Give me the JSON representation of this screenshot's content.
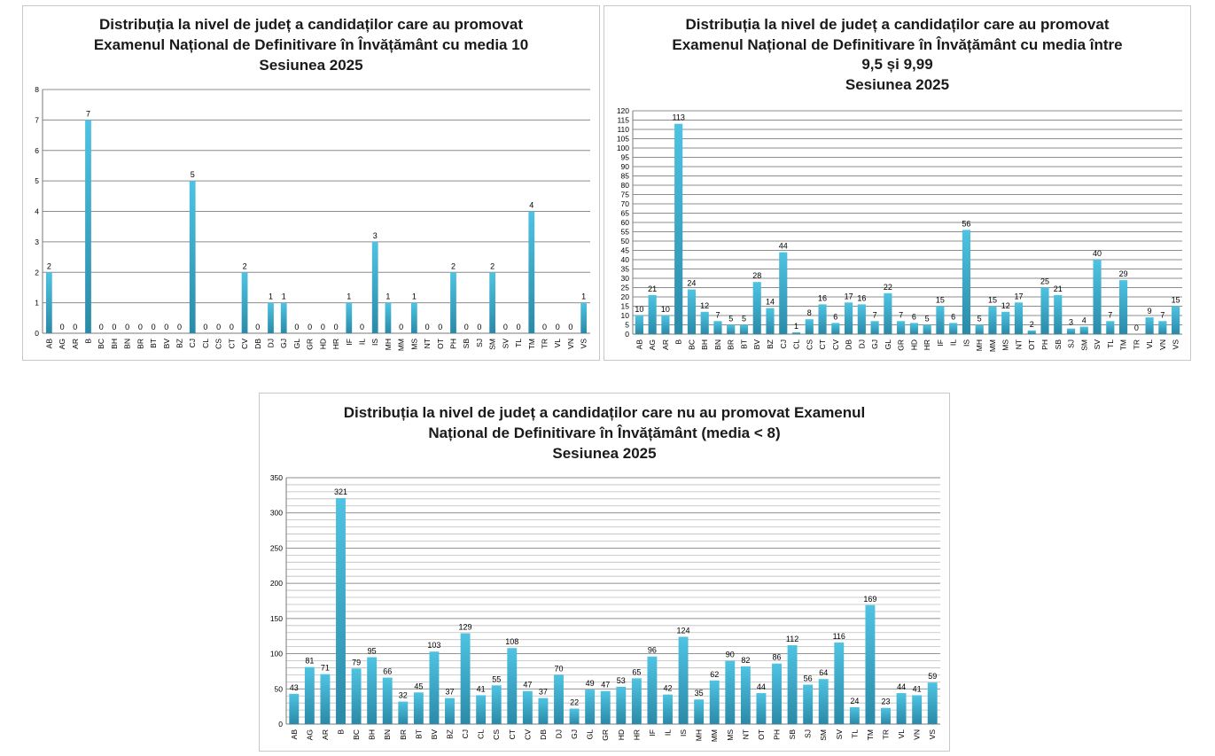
{
  "colors": {
    "bar_light": "#4fc3e2",
    "bar_dark": "#2a8aa8",
    "grid_major": "#8c8c8c",
    "grid_minor": "#bdbdbd"
  },
  "chart_data": [
    {
      "type": "bar",
      "title": [
        "Distribuția la nivel de județ a candidaților care au promovat",
        "Examenul Național de Definitivare în Învățământ cu media 10",
        "Sesiunea 2025"
      ],
      "xlabel": "",
      "ylabel": "",
      "ylim": [
        0,
        8
      ],
      "yticks": [
        0,
        1,
        2,
        3,
        4,
        5,
        6,
        7,
        8
      ],
      "grid": true,
      "legend": false,
      "categories": [
        "AB",
        "AG",
        "AR",
        "B",
        "BC",
        "BH",
        "BN",
        "BR",
        "BT",
        "BV",
        "BZ",
        "CJ",
        "CL",
        "CS",
        "CT",
        "CV",
        "DB",
        "DJ",
        "GJ",
        "GL",
        "GR",
        "HD",
        "HR",
        "IF",
        "IL",
        "IS",
        "MH",
        "MM",
        "MS",
        "NT",
        "OT",
        "PH",
        "SB",
        "SJ",
        "SM",
        "SV",
        "TL",
        "TM",
        "TR",
        "VL",
        "VN",
        "VS"
      ],
      "values": [
        2,
        0,
        0,
        7,
        0,
        0,
        0,
        0,
        0,
        0,
        0,
        5,
        0,
        0,
        0,
        2,
        0,
        1,
        1,
        0,
        0,
        0,
        0,
        1,
        0,
        3,
        1,
        0,
        1,
        0,
        0,
        2,
        0,
        0,
        2,
        0,
        0,
        4,
        0,
        0,
        0,
        1
      ]
    },
    {
      "type": "bar",
      "title": [
        "Distribuția la nivel de județ a candidaților care au promovat",
        "Examenul Național de Definitivare în Învățământ cu media între",
        "9,5 și 9,99",
        "Sesiunea 2025"
      ],
      "xlabel": "",
      "ylabel": "",
      "ylim": [
        0,
        120
      ],
      "yticks": [
        0,
        5,
        10,
        15,
        20,
        25,
        30,
        35,
        40,
        45,
        50,
        55,
        60,
        65,
        70,
        75,
        80,
        85,
        90,
        95,
        100,
        105,
        110,
        115,
        120
      ],
      "grid": true,
      "legend": false,
      "categories": [
        "AB",
        "AG",
        "AR",
        "B",
        "BC",
        "BH",
        "BN",
        "BR",
        "BT",
        "BV",
        "BZ",
        "CJ",
        "CL",
        "CS",
        "CT",
        "CV",
        "DB",
        "DJ",
        "GJ",
        "GL",
        "GR",
        "HD",
        "HR",
        "IF",
        "IL",
        "IS",
        "MH",
        "MM",
        "MS",
        "NT",
        "OT",
        "PH",
        "SB",
        "SJ",
        "SM",
        "SV",
        "TL",
        "TM",
        "TR",
        "VL",
        "VN",
        "VS"
      ],
      "values": [
        10,
        21,
        10,
        113,
        24,
        12,
        7,
        5,
        5,
        28,
        14,
        44,
        1,
        8,
        16,
        6,
        17,
        16,
        7,
        22,
        7,
        6,
        5,
        15,
        6,
        56,
        5,
        15,
        12,
        17,
        2,
        25,
        21,
        3,
        4,
        40,
        7,
        29,
        0,
        9,
        7,
        15
      ]
    },
    {
      "type": "bar",
      "title": [
        "Distribuția la nivel de județ a candidaților care nu au promovat Examenul",
        "Național de Definitivare în Învățământ (media < 8)",
        "Sesiunea 2025"
      ],
      "xlabel": "",
      "ylabel": "",
      "ylim": [
        0,
        350
      ],
      "yticks": [
        0,
        50,
        100,
        150,
        200,
        250,
        300,
        350
      ],
      "grid": true,
      "legend": false,
      "categories": [
        "AB",
        "AG",
        "AR",
        "B",
        "BC",
        "BH",
        "BN",
        "BR",
        "BT",
        "BV",
        "BZ",
        "CJ",
        "CL",
        "CS",
        "CT",
        "CV",
        "DB",
        "DJ",
        "GJ",
        "GL",
        "GR",
        "HD",
        "HR",
        "IF",
        "IL",
        "IS",
        "MH",
        "MM",
        "MS",
        "NT",
        "OT",
        "PH",
        "SB",
        "SJ",
        "SM",
        "SV",
        "TL",
        "TM",
        "TR",
        "VL",
        "VN",
        "VS"
      ],
      "values": [
        43,
        81,
        71,
        321,
        79,
        95,
        66,
        32,
        45,
        103,
        37,
        129,
        41,
        55,
        108,
        47,
        37,
        70,
        22,
        49,
        47,
        53,
        65,
        96,
        42,
        124,
        35,
        62,
        90,
        82,
        44,
        86,
        112,
        56,
        64,
        116,
        24,
        169,
        23,
        44,
        41,
        59
      ]
    }
  ]
}
